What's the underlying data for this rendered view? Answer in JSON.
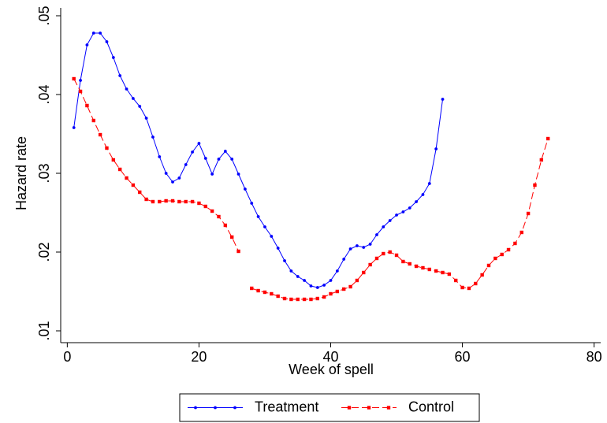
{
  "chart_data": {
    "type": "line",
    "xlabel": "Week of spell",
    "ylabel": "Hazard rate",
    "x": [
      1,
      2,
      3,
      4,
      5,
      6,
      7,
      8,
      9,
      10,
      11,
      12,
      13,
      14,
      15,
      16,
      17,
      18,
      19,
      20,
      21,
      22,
      23,
      24,
      25,
      26,
      27,
      28,
      29,
      30,
      31,
      32,
      33,
      34,
      35,
      36,
      37,
      38,
      39,
      40,
      41,
      42,
      43,
      44,
      45,
      46,
      47,
      48,
      49,
      50,
      51,
      52,
      53,
      54,
      55,
      56,
      57,
      58,
      59,
      60,
      61,
      62,
      63,
      64,
      65,
      66,
      67,
      68,
      69,
      70,
      71,
      72,
      73
    ],
    "series": [
      {
        "name": "Treatment",
        "color": "#0000ff",
        "dashed": false,
        "marker": "circle",
        "values": [
          0.0358,
          0.0418,
          0.0463,
          0.0478,
          0.0478,
          0.0467,
          0.0447,
          0.0424,
          0.0407,
          0.0395,
          0.0385,
          0.037,
          0.0346,
          0.0321,
          0.03,
          0.0289,
          0.0294,
          0.0311,
          0.0327,
          0.0338,
          0.0319,
          0.0299,
          0.0318,
          0.0328,
          0.0318,
          0.0299,
          0.028,
          0.0262,
          0.0245,
          0.0232,
          0.022,
          0.0205,
          0.0189,
          0.0176,
          0.0169,
          0.0164,
          0.0157,
          0.0155,
          0.0158,
          0.0164,
          0.0176,
          0.0191,
          0.0204,
          0.0208,
          0.0206,
          0.021,
          0.0222,
          0.0232,
          0.024,
          0.0247,
          0.0251,
          0.0256,
          0.0264,
          0.0273,
          0.0287,
          0.0331,
          0.0394,
          null,
          null,
          null,
          null,
          null,
          null,
          null,
          null,
          null,
          null,
          null,
          null,
          null,
          null,
          null,
          null
        ]
      },
      {
        "name": "Control",
        "color": "#ff0000",
        "dashed": true,
        "marker": "square",
        "values": [
          0.042,
          0.0404,
          0.0386,
          0.0367,
          0.0349,
          0.0332,
          0.0317,
          0.0305,
          0.0294,
          0.0285,
          0.0276,
          0.0267,
          0.0264,
          0.0264,
          0.0265,
          0.0265,
          0.0264,
          0.0264,
          0.0264,
          0.0262,
          0.0258,
          0.0252,
          0.0245,
          0.0234,
          0.0219,
          0.0201,
          null,
          0.0154,
          0.0151,
          0.0149,
          0.0147,
          0.0144,
          0.0141,
          0.014,
          0.014,
          0.014,
          0.014,
          0.0141,
          0.0143,
          0.0147,
          0.015,
          0.0153,
          0.0156,
          0.0164,
          0.0174,
          0.0184,
          0.0192,
          0.0198,
          0.02,
          0.0196,
          0.0188,
          0.0185,
          0.0182,
          0.018,
          0.0178,
          0.0176,
          0.0174,
          0.0172,
          0.0164,
          0.0155,
          0.0154,
          0.016,
          0.0171,
          0.0183,
          0.0192,
          0.0197,
          0.0203,
          0.0211,
          0.0225,
          0.0249,
          0.0285,
          0.0317,
          0.0344
        ]
      }
    ],
    "xlim": [
      -1,
      81
    ],
    "xticks": [
      0,
      20,
      40,
      60,
      80
    ],
    "ylim": [
      0.0085,
      0.05
    ],
    "yticks": [
      {
        "value": 0.01,
        "label": ".01"
      },
      {
        "value": 0.02,
        "label": ".02"
      },
      {
        "value": 0.03,
        "label": ".03"
      },
      {
        "value": 0.04,
        "label": ".04"
      },
      {
        "value": 0.05,
        "label": ".05"
      }
    ],
    "grid": false,
    "legend": "bottom"
  }
}
